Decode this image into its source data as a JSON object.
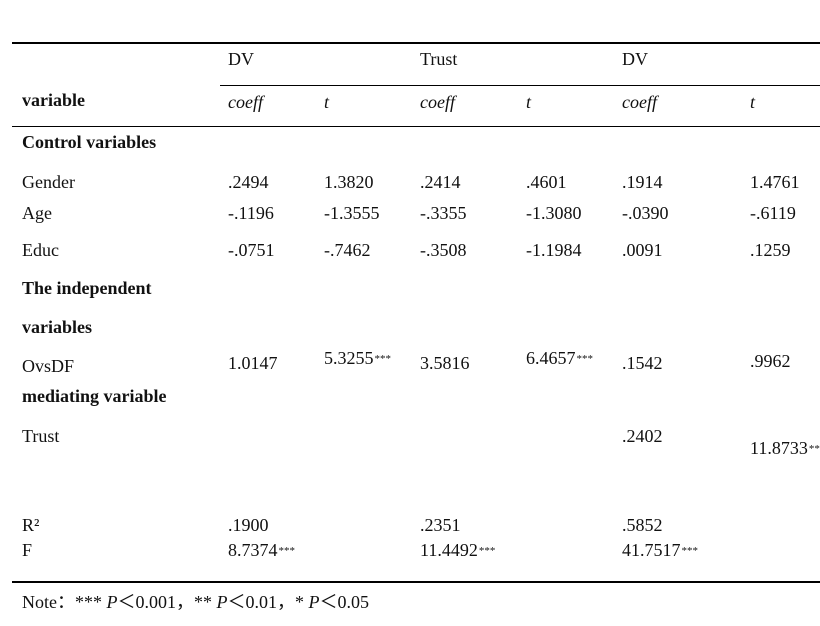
{
  "header": {
    "groups": [
      "DV",
      "Trust",
      "DV"
    ],
    "row_label": "variable",
    "subcols": [
      "coeff",
      "t",
      "coeff",
      "t",
      "coeff",
      "t"
    ]
  },
  "sections": {
    "control": "Control variables",
    "independent_line1": "The independent",
    "independent_line2": "variables",
    "mediating": "mediating variable"
  },
  "rows": [
    {
      "label": "Gender",
      "cells": [
        ".2494",
        "1.3820",
        ".2414",
        ".4601",
        ".1914",
        "1.4761"
      ]
    },
    {
      "label": "Age",
      "cells": [
        "-.1196",
        "-1.3555",
        "-.3355",
        "-1.3080",
        "-.0390",
        "-.6119"
      ]
    },
    {
      "label": "Educ",
      "cells": [
        "-.0751",
        "-.7462",
        "-.3508",
        "-1.1984",
        ".0091",
        ".1259"
      ]
    },
    {
      "label": "OvsDF",
      "cells": [
        "1.0147",
        "5.3255",
        "3.5816",
        "6.4657",
        ".1542",
        ".9962"
      ],
      "sig": [
        "",
        "***",
        "",
        "***",
        "",
        ""
      ]
    },
    {
      "label": "Trust",
      "cells": [
        "",
        "",
        "",
        "",
        ".2402",
        "11.8733"
      ],
      "sig": [
        "",
        "",
        "",
        "",
        "",
        "***"
      ]
    },
    {
      "label": "R²",
      "cells": [
        ".1900",
        "",
        ".2351",
        "",
        ".5852",
        ""
      ]
    },
    {
      "label": "F",
      "cells": [
        "8.7374",
        "",
        "11.4492",
        "",
        "41.7517",
        ""
      ],
      "sig": [
        "***",
        "",
        "***",
        "",
        "***",
        ""
      ]
    }
  ],
  "note": {
    "prefix": "Note：",
    "items": [
      {
        "stars": "***",
        "p": "P",
        "cmp": "＜0.001，"
      },
      {
        "stars": "**",
        "p": "P",
        "cmp": "＜0.01，"
      },
      {
        "stars": "*",
        "p": "P",
        "cmp": "＜0.05"
      }
    ]
  }
}
